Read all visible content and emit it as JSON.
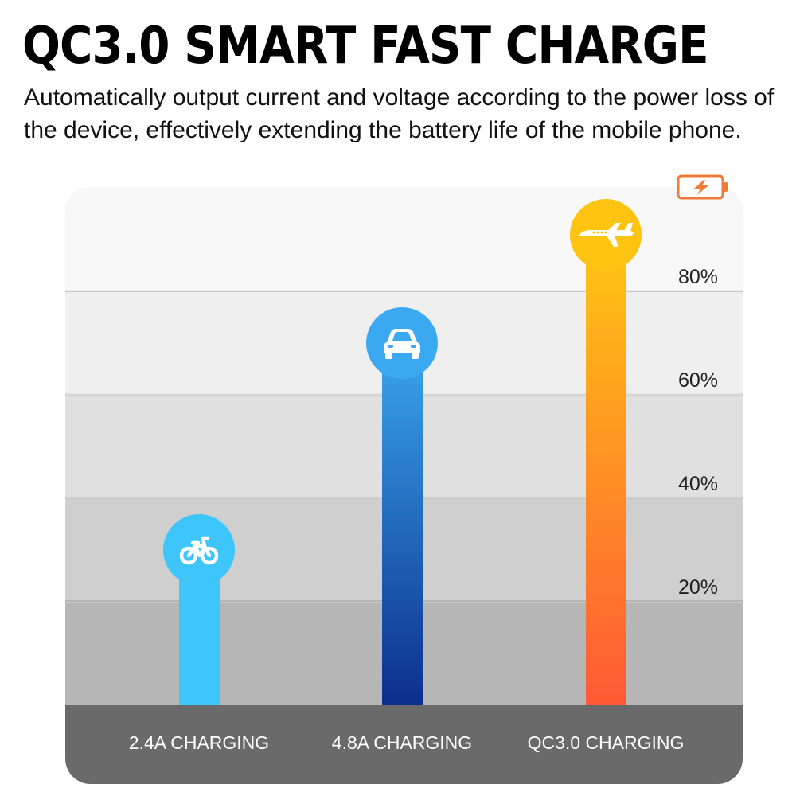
{
  "header": {
    "title": "QC3.0 SMART FAST CHARGE",
    "subtitle": "Automatically output current and voltage according to the power loss of the device, effectively extending the battery life of the mobile phone."
  },
  "battery_icon": "battery-charging-icon",
  "chart_data": {
    "type": "bar",
    "title": "",
    "xlabel": "",
    "ylabel": "",
    "categories": [
      "2.4A CHARGING",
      "4.8A CHARGING",
      "QC3.0 CHARGING"
    ],
    "values": [
      30,
      70,
      91
    ],
    "ylim": [
      0,
      100
    ],
    "yticks": [
      20,
      40,
      60,
      80
    ],
    "ytick_labels": [
      "20%",
      "40%",
      "60%",
      "80%"
    ],
    "ytick_position": "right",
    "grid": true,
    "legend": "none",
    "bar_icons": [
      "bicycle-icon",
      "car-icon",
      "airplane-icon"
    ],
    "bar_colors": [
      {
        "top": "#3ec6fb",
        "bottom": "#3ec6fb"
      },
      {
        "top": "#3aa6ee",
        "bottom": "#0b2f8c"
      },
      {
        "top": "#ffc712",
        "bottom": "#ff5a36"
      }
    ],
    "bubble_colors": [
      "#3ec6fb",
      "#3ba9f1",
      "#ffc412"
    ]
  }
}
